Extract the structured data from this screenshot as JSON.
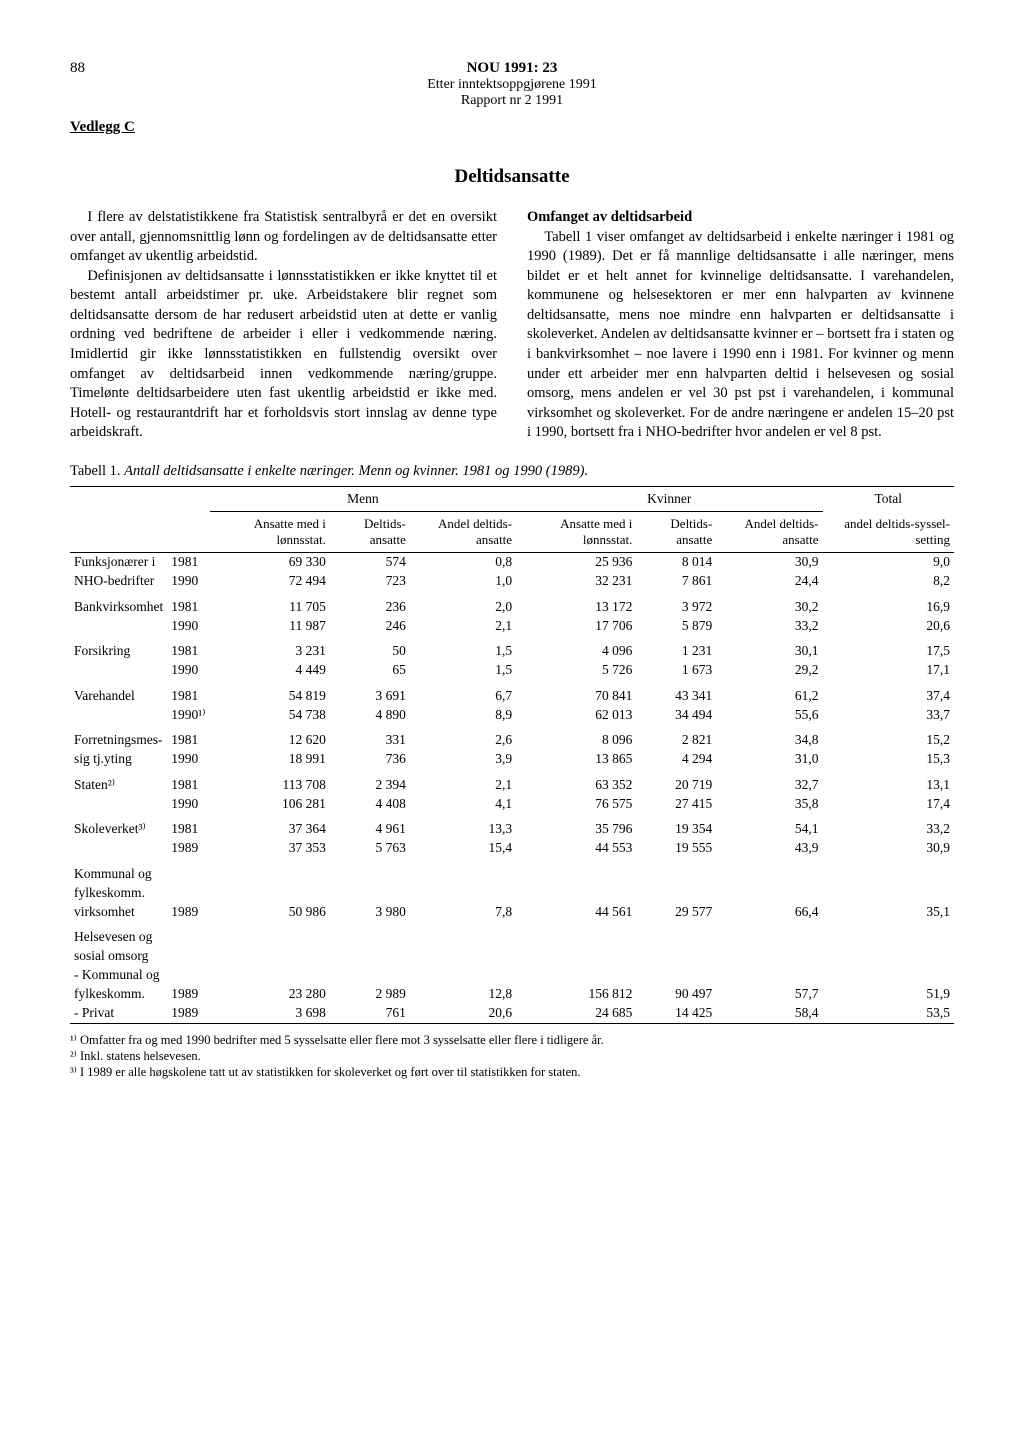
{
  "page_number": "88",
  "header": {
    "title": "NOU 1991: 23",
    "subtitle1": "Etter inntektsoppgjørene 1991",
    "subtitle2": "Rapport nr 2 1991"
  },
  "vedlegg": "Vedlegg C",
  "section_title": "Deltidsansatte",
  "left_column": {
    "p1": "I flere av delstatistikkene fra Statistisk sentralbyrå er det en oversikt over antall, gjennomsnittlig lønn og fordelingen av de deltidsansatte etter omfanget av ukentlig arbeidstid.",
    "p2": "Definisjonen av deltidsansatte i lønnsstatistikken er ikke knyttet til et bestemt antall arbeidstimer pr. uke. Arbeidstakere blir regnet som deltidsansatte dersom de har redusert arbeidstid uten at dette er vanlig ordning ved bedriftene de arbeider i eller i vedkommende næring. Imidlertid gir ikke lønnsstatistikken en fullstendig oversikt over omfanget av deltidsarbeid innen vedkommende næring/gruppe. Timelønte deltidsarbeidere uten fast ukentlig arbeidstid er ikke med. Hotell- og restaurantdrift har et forholdsvis stort innslag av denne type arbeidskraft."
  },
  "right_column": {
    "heading": "Omfanget av deltidsarbeid",
    "p1": "Tabell 1 viser omfanget av deltidsarbeid i enkelte næringer i 1981 og 1990 (1989). Det er få mannlige deltidsansatte i alle næringer, mens bildet er et helt annet for kvinnelige deltidsansatte. I varehandelen, kommunene og helsesektoren er mer enn halvparten av kvinnene deltidsansatte, mens noe mindre enn halvparten er deltidsansatte i skoleverket. Andelen av deltidsansatte kvinner er – bortsett fra i staten og i bankvirksomhet – noe lavere i 1990 enn i 1981. For kvinner og menn under ett arbeider mer enn halvparten deltid i helsevesen og sosial omsorg, mens andelen er vel 30 pst pst i varehandelen, i kommunal virksomhet og skoleverket. For de andre næringene er andelen 15–20 pst i 1990, bortsett fra i NHO-bedrifter hvor andelen er vel 8 pst."
  },
  "table_caption": {
    "label": "Tabell 1.",
    "text": "Antall deltidsansatte i enkelte næringer. Menn og kvinner. 1981 og 1990 (1989)."
  },
  "table": {
    "group_headers": [
      "",
      "",
      "Menn",
      "",
      "",
      "Kvinner",
      "",
      "Total"
    ],
    "col_headers": [
      "",
      "",
      "Ansatte med i lønnsstat.",
      "Deltids-ansatte",
      "Andel deltids-ansatte",
      "Ansatte med i lønnsstat.",
      "Deltids-ansatte",
      "Andel deltids-ansatte",
      "andel deltids-syssel-setting"
    ],
    "rows": [
      {
        "label": "Funksjonærer i",
        "year": "1981",
        "c1": "69 330",
        "c2": "574",
        "c3": "0,8",
        "c4": "25 936",
        "c5": "8 014",
        "c6": "30,9",
        "c7": "9,0"
      },
      {
        "label": "NHO-bedrifter",
        "year": "1990",
        "c1": "72 494",
        "c2": "723",
        "c3": "1,0",
        "c4": "32 231",
        "c5": "7 861",
        "c6": "24,4",
        "c7": "8,2"
      },
      {
        "label": "Bankvirksomhet",
        "year": "1981",
        "c1": "11 705",
        "c2": "236",
        "c3": "2,0",
        "c4": "13 172",
        "c5": "3 972",
        "c6": "30,2",
        "c7": "16,9",
        "spacer": true
      },
      {
        "label": "",
        "year": "1990",
        "c1": "11 987",
        "c2": "246",
        "c3": "2,1",
        "c4": "17 706",
        "c5": "5 879",
        "c6": "33,2",
        "c7": "20,6"
      },
      {
        "label": "Forsikring",
        "year": "1981",
        "c1": "3 231",
        "c2": "50",
        "c3": "1,5",
        "c4": "4 096",
        "c5": "1 231",
        "c6": "30,1",
        "c7": "17,5",
        "spacer": true
      },
      {
        "label": "",
        "year": "1990",
        "c1": "4 449",
        "c2": "65",
        "c3": "1,5",
        "c4": "5 726",
        "c5": "1 673",
        "c6": "29,2",
        "c7": "17,1"
      },
      {
        "label": "Varehandel",
        "year": "1981",
        "c1": "54 819",
        "c2": "3 691",
        "c3": "6,7",
        "c4": "70 841",
        "c5": "43 341",
        "c6": "61,2",
        "c7": "37,4",
        "spacer": true
      },
      {
        "label": "",
        "year": "1990¹⁾",
        "c1": "54 738",
        "c2": "4 890",
        "c3": "8,9",
        "c4": "62 013",
        "c5": "34 494",
        "c6": "55,6",
        "c7": "33,7"
      },
      {
        "label": "Forretningsmes-",
        "year": "1981",
        "c1": "12 620",
        "c2": "331",
        "c3": "2,6",
        "c4": "8 096",
        "c5": "2 821",
        "c6": "34,8",
        "c7": "15,2",
        "spacer": true
      },
      {
        "label": "sig tj.yting",
        "year": "1990",
        "c1": "18 991",
        "c2": "736",
        "c3": "3,9",
        "c4": "13 865",
        "c5": "4 294",
        "c6": "31,0",
        "c7": "15,3"
      },
      {
        "label": "Staten²⁾",
        "year": "1981",
        "c1": "113 708",
        "c2": "2 394",
        "c3": "2,1",
        "c4": "63 352",
        "c5": "20 719",
        "c6": "32,7",
        "c7": "13,1",
        "spacer": true
      },
      {
        "label": "",
        "year": "1990",
        "c1": "106 281",
        "c2": "4 408",
        "c3": "4,1",
        "c4": "76 575",
        "c5": "27 415",
        "c6": "35,8",
        "c7": "17,4"
      },
      {
        "label": "Skoleverket³⁾",
        "year": "1981",
        "c1": "37 364",
        "c2": "4 961",
        "c3": "13,3",
        "c4": "35 796",
        "c5": "19 354",
        "c6": "54,1",
        "c7": "33,2",
        "spacer": true
      },
      {
        "label": "",
        "year": "1989",
        "c1": "37 353",
        "c2": "5 763",
        "c3": "15,4",
        "c4": "44 553",
        "c5": "19 555",
        "c6": "43,9",
        "c7": "30,9"
      },
      {
        "label": "Kommunal og",
        "year": "",
        "c1": "",
        "c2": "",
        "c3": "",
        "c4": "",
        "c5": "",
        "c6": "",
        "c7": "",
        "spacer": true
      },
      {
        "label": "fylkeskomm.",
        "year": "",
        "c1": "",
        "c2": "",
        "c3": "",
        "c4": "",
        "c5": "",
        "c6": "",
        "c7": ""
      },
      {
        "label": "virksomhet",
        "year": "1989",
        "c1": "50 986",
        "c2": "3 980",
        "c3": "7,8",
        "c4": "44 561",
        "c5": "29 577",
        "c6": "66,4",
        "c7": "35,1"
      },
      {
        "label": "Helsevesen og",
        "year": "",
        "c1": "",
        "c2": "",
        "c3": "",
        "c4": "",
        "c5": "",
        "c6": "",
        "c7": "",
        "spacer": true
      },
      {
        "label": "sosial omsorg",
        "year": "",
        "c1": "",
        "c2": "",
        "c3": "",
        "c4": "",
        "c5": "",
        "c6": "",
        "c7": ""
      },
      {
        "label": "- Kommunal og",
        "year": "",
        "c1": "",
        "c2": "",
        "c3": "",
        "c4": "",
        "c5": "",
        "c6": "",
        "c7": ""
      },
      {
        "label": "fylkeskomm.",
        "year": "1989",
        "c1": "23 280",
        "c2": "2 989",
        "c3": "12,8",
        "c4": "156 812",
        "c5": "90 497",
        "c6": "57,7",
        "c7": "51,9"
      },
      {
        "label": "- Privat",
        "year": "1989",
        "c1": "3 698",
        "c2": "761",
        "c3": "20,6",
        "c4": "24 685",
        "c5": "14 425",
        "c6": "58,4",
        "c7": "53,5"
      }
    ]
  },
  "footnotes": {
    "f1": "¹⁾ Omfatter fra og med 1990 bedrifter med 5 sysselsatte eller flere mot 3 sysselsatte eller flere i tidligere år.",
    "f2": "²⁾ Inkl. statens helsevesen.",
    "f3": "³⁾ I 1989 er alle høgskolene tatt ut av statistikken for skoleverket og ført over til statistikken for staten."
  }
}
